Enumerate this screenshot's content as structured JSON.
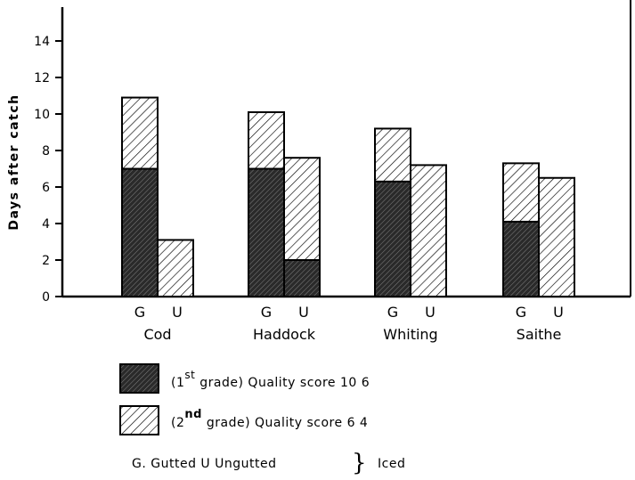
{
  "chart_data": {
    "type": "bar",
    "ylabel": "Days after catch",
    "xlabel": "",
    "ylim": [
      0,
      16
    ],
    "yticks": [
      "0",
      "2",
      "4",
      "6",
      "8",
      "10",
      "12",
      "14"
    ],
    "categories": [
      "Cod",
      "Haddock",
      "Whiting",
      "Saithe"
    ],
    "sub_categories": [
      "G",
      "U"
    ],
    "bars": [
      {
        "species": "Cod",
        "group": "G",
        "first_grade": 7.0,
        "second_grade_top": 10.9
      },
      {
        "species": "Cod",
        "group": "U",
        "first_grade": 0,
        "second_grade_top": 3.1
      },
      {
        "species": "Haddock",
        "group": "G",
        "first_grade": 7.0,
        "second_grade_top": 10.1
      },
      {
        "species": "Haddock",
        "group": "U",
        "first_grade": 2.0,
        "second_grade_top": 7.6
      },
      {
        "species": "Whiting",
        "group": "G",
        "first_grade": 6.3,
        "second_grade_top": 9.2
      },
      {
        "species": "Whiting",
        "group": "U",
        "first_grade": 0,
        "second_grade_top": 7.2
      },
      {
        "species": "Saithe",
        "group": "G",
        "first_grade": 4.1,
        "second_grade_top": 7.3
      },
      {
        "species": "Saithe",
        "group": "U",
        "first_grade": 0,
        "second_grade_top": 6.5
      }
    ],
    "category_labels": [
      "Cod",
      "Haddock",
      "Whiting",
      "Saithe"
    ],
    "legend": [
      {
        "name": "(1st grade) Quality score 10 6",
        "fill": "dark-hatch",
        "prefix": "(1",
        "sup": "st",
        "suffix": " grade) Quality score 10 6"
      },
      {
        "name": "(2nd grade) Quality score 6 4",
        "fill": "light-hatch",
        "prefix": "(2",
        "sup": "nd",
        "suffix": " grade) Quality score 6 4"
      }
    ],
    "footnote": {
      "text": "G. Gutted U Ungutted",
      "brace": "}",
      "suffix": "Iced"
    },
    "grid": false,
    "colors": {
      "ink": "#000000",
      "dark_fill": "#2a2a2a",
      "background": "#ffffff"
    }
  }
}
